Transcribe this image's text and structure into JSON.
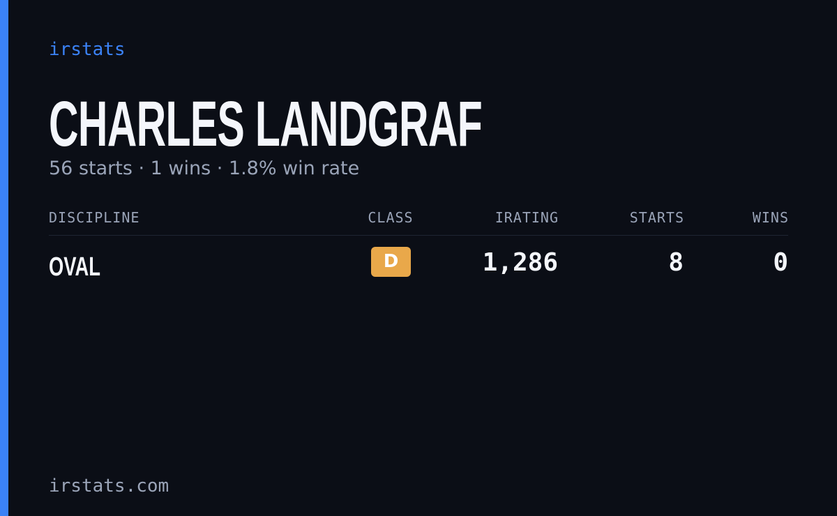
{
  "brand": "irstats",
  "name": "CHARLES LANDGRAF",
  "summary": "56 starts · 1 wins · 1.8% win rate",
  "table": {
    "headers": [
      "DISCIPLINE",
      "CLASS",
      "IRATING",
      "STARTS",
      "WINS"
    ],
    "rows": [
      [
        "OVAL",
        "D",
        "1,286",
        "8",
        "0"
      ]
    ]
  },
  "footer": "irstats.com"
}
